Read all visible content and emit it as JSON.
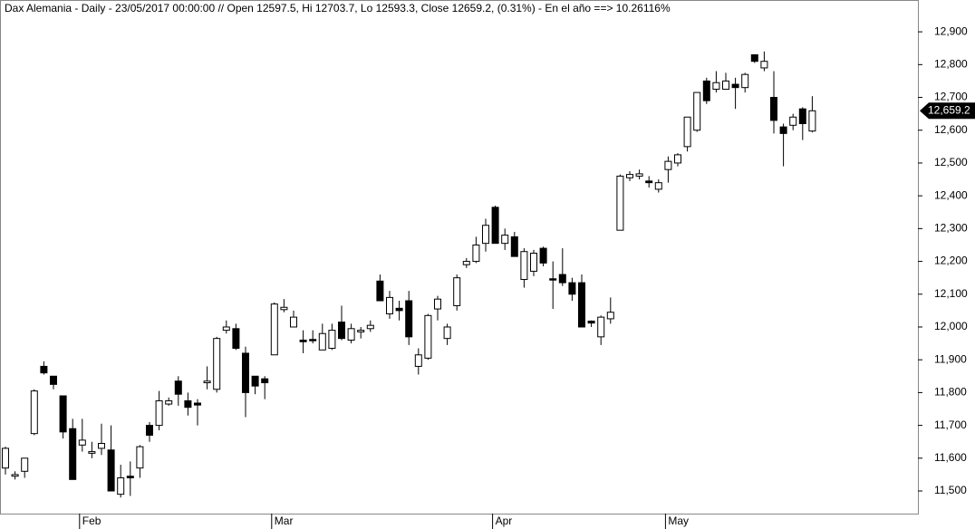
{
  "chart_data": {
    "type": "candlestick",
    "title": "Dax Alemania - Daily - 23/05/2017 00:00:00 // Open 12597.5, Hi 12703.7, Lo 12593.3, Close 12659.2, (0.31%) - En el año ==> 10.26116%",
    "categories": [
      null,
      null,
      null,
      null,
      null,
      null,
      null,
      null,
      "Feb",
      null,
      null,
      null,
      null,
      null,
      null,
      null,
      null,
      null,
      null,
      null,
      null,
      null,
      null,
      null,
      null,
      null,
      null,
      null,
      "Mar",
      null,
      null,
      null,
      null,
      null,
      null,
      null,
      null,
      null,
      null,
      null,
      null,
      null,
      null,
      null,
      null,
      null,
      null,
      null,
      null,
      null,
      null,
      "Apr",
      null,
      null,
      null,
      null,
      null,
      null,
      null,
      null,
      null,
      null,
      null,
      null,
      null,
      null,
      null,
      null,
      null,
      "May",
      null,
      null,
      null,
      null,
      null,
      null,
      null,
      null,
      null,
      null,
      null,
      null,
      null,
      null,
      null
    ],
    "open": [
      11570,
      11545,
      11560,
      11675,
      11880,
      11850,
      11790,
      11690,
      11640,
      11615,
      11630,
      11625,
      11490,
      11545,
      11570,
      11700,
      11700,
      11765,
      11835,
      11775,
      11768,
      11830,
      11810,
      11990,
      11995,
      11920,
      11850,
      11842,
      11915,
      12053,
      12000,
      11960,
      11962,
      11930,
      11935,
      12015,
      11960,
      11985,
      11995,
      12140,
      12040,
      12057,
      12080,
      11880,
      11905,
      12055,
      11965,
      12065,
      12190,
      12200,
      12255,
      12365,
      12255,
      12275,
      12145,
      12170,
      12240,
      12147,
      12160,
      12135,
      12135,
      12018,
      11970,
      12025,
      12295,
      12455,
      12460,
      12445,
      12420,
      12480,
      12500,
      12550,
      12600,
      12750,
      12725,
      12725,
      12740,
      12730,
      12830,
      12790,
      12700,
      12610,
      12615,
      12665,
      12597.5
    ],
    "high": [
      11635,
      11560,
      11600,
      11810,
      11895,
      11850,
      11790,
      11720,
      11720,
      11650,
      11705,
      11700,
      11580,
      11590,
      11640,
      11710,
      11805,
      11785,
      11850,
      11800,
      11780,
      11880,
      11970,
      12020,
      12010,
      11940,
      11850,
      11850,
      12075,
      12085,
      12050,
      11990,
      11990,
      12010,
      12010,
      12065,
      12010,
      12000,
      12020,
      12160,
      12110,
      12080,
      12110,
      11935,
      12040,
      12095,
      12010,
      12160,
      12210,
      12275,
      12330,
      12370,
      12300,
      12290,
      12240,
      12235,
      12245,
      12200,
      12240,
      12150,
      12160,
      12020,
      12035,
      12090,
      12465,
      12475,
      12480,
      12460,
      12450,
      12520,
      12530,
      12640,
      12715,
      12760,
      12780,
      12775,
      12760,
      12775,
      12830,
      12840,
      12780,
      12620,
      12650,
      12670,
      12703.7
    ],
    "low": [
      11550,
      11535,
      11540,
      11670,
      11855,
      11810,
      11660,
      11535,
      11620,
      11600,
      11610,
      11500,
      11480,
      11485,
      11540,
      11650,
      11685,
      11760,
      11760,
      11730,
      11700,
      11810,
      11800,
      11980,
      11930,
      11725,
      11795,
      11780,
      11915,
      12045,
      12000,
      11920,
      11950,
      11930,
      11930,
      11960,
      11950,
      11965,
      11985,
      12080,
      12025,
      12020,
      11945,
      11855,
      11900,
      12020,
      11945,
      12050,
      12180,
      12195,
      12230,
      12255,
      12235,
      12215,
      12120,
      12155,
      12185,
      12055,
      12125,
      12080,
      12000,
      12000,
      11945,
      12010,
      12295,
      12445,
      12450,
      12425,
      12410,
      12440,
      12490,
      12535,
      12595,
      12680,
      12715,
      12725,
      12665,
      12715,
      12805,
      12780,
      12590,
      12490,
      12600,
      12570,
      12593.3
    ],
    "close": [
      11630,
      11550,
      11600,
      11805,
      11860,
      11825,
      11680,
      11535,
      11655,
      11620,
      11645,
      11500,
      11540,
      11540,
      11635,
      11670,
      11775,
      11775,
      11795,
      11755,
      11762,
      11835,
      11965,
      12000,
      11935,
      11800,
      11820,
      11830,
      12070,
      12060,
      12030,
      11955,
      11958,
      11980,
      11990,
      11965,
      11995,
      11990,
      12005,
      12080,
      12090,
      12050,
      11970,
      11915,
      12035,
      12085,
      12000,
      12150,
      12200,
      12250,
      12310,
      12255,
      12280,
      12215,
      12230,
      12225,
      12195,
      12143,
      12135,
      12100,
      12000,
      12012,
      12030,
      12045,
      12460,
      12465,
      12467,
      12440,
      12440,
      12505,
      12525,
      12640,
      12715,
      12690,
      12745,
      12750,
      12730,
      12770,
      12810,
      12810,
      12630,
      12590,
      12640,
      12620,
      12659.2
    ],
    "up_color": "#ffffff",
    "down_color": "#000000",
    "ylim": [
      11431,
      12997
    ],
    "yticks": [
      {
        "value": 11500,
        "label": "11,500"
      },
      {
        "value": 11600,
        "label": "11,600"
      },
      {
        "value": 11700,
        "label": "11,700"
      },
      {
        "value": 11800,
        "label": "11,800"
      },
      {
        "value": 11900,
        "label": "11,900"
      },
      {
        "value": 12000,
        "label": "12,000"
      },
      {
        "value": 12100,
        "label": "12,100"
      },
      {
        "value": 12200,
        "label": "12,200"
      },
      {
        "value": 12300,
        "label": "12,300"
      },
      {
        "value": 12400,
        "label": "12,400"
      },
      {
        "value": 12500,
        "label": "12,500"
      },
      {
        "value": 12600,
        "label": "12,600"
      },
      {
        "value": 12700,
        "label": "12,700"
      },
      {
        "value": 12800,
        "label": "12,800"
      },
      {
        "value": 12900,
        "label": "12,900"
      }
    ],
    "last_price": {
      "value": 12659.2,
      "label": "12,659.2"
    }
  }
}
